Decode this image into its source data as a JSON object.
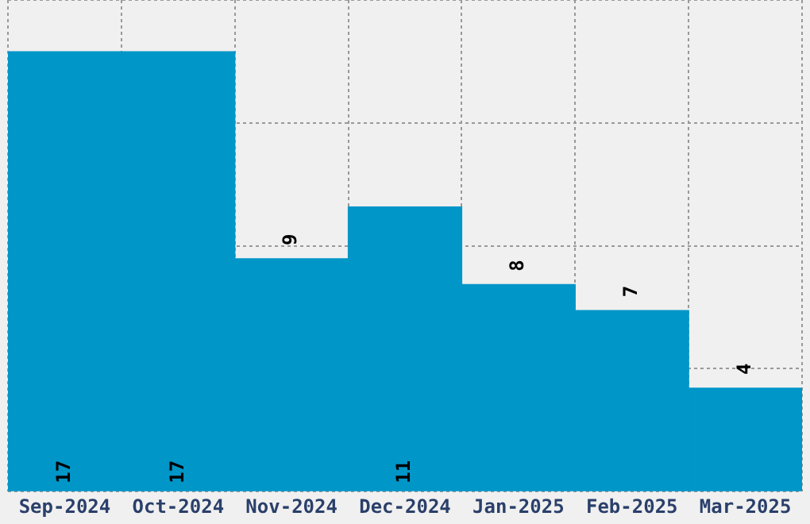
{
  "chart_data": {
    "type": "bar",
    "categories": [
      "Sep-2024",
      "Oct-2024",
      "Nov-2024",
      "Dec-2024",
      "Jan-2025",
      "Feb-2025",
      "Mar-2025"
    ],
    "values": [
      17,
      17,
      9,
      11,
      8,
      7,
      4
    ],
    "color": "#0096c8",
    "ylim": [
      0,
      19
    ],
    "yticks": [
      {
        "value": 0,
        "label": null
      },
      {
        "value": 4.75,
        "label": null
      },
      {
        "value": 9.5,
        "label": null
      },
      {
        "value": 14.25,
        "label": null
      },
      {
        "value": 19,
        "label": null
      }
    ],
    "grid": true,
    "data_labels": true,
    "tick_labels": "x"
  }
}
